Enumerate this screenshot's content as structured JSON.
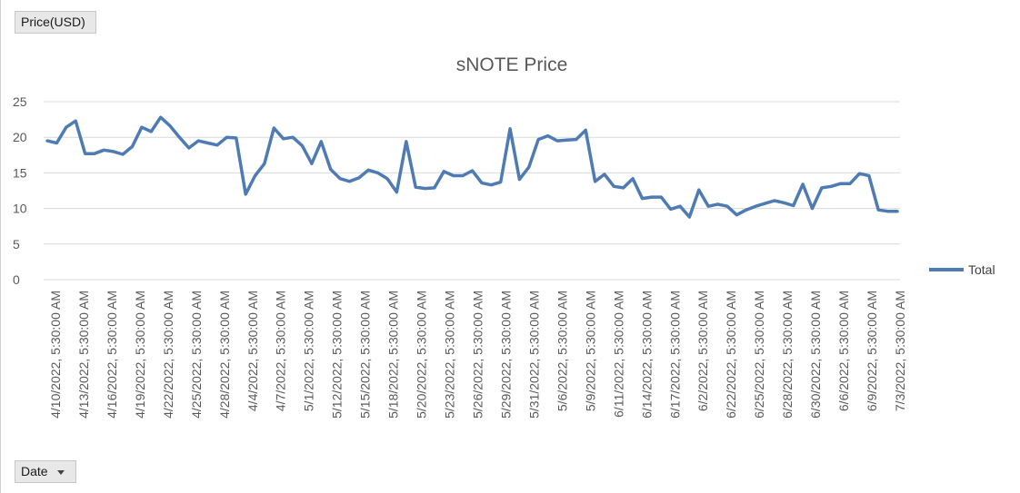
{
  "field_buttons": {
    "value_field": "Price(USD)",
    "axis_field": "Date"
  },
  "colors": {
    "series": "#4f7bb4",
    "grid": "#d9d9d9",
    "text": "#595959"
  },
  "chart_data": {
    "type": "line",
    "title": "sNOTE Price",
    "xlabel": "",
    "ylabel": "",
    "ylim": [
      0,
      25
    ],
    "yticks": [
      0,
      5,
      10,
      15,
      20,
      25
    ],
    "grid": true,
    "legend_position": "right",
    "x_tick_labels": [
      "4/10/2022, 5:30:00 AM",
      "4/13/2022, 5:30:00 AM",
      "4/16/2022, 5:30:00 AM",
      "4/19/2022, 5:30:00 AM",
      "4/22/2022, 5:30:00 AM",
      "4/25/2022, 5:30:00 AM",
      "4/28/2022, 5:30:00 AM",
      "4/4/2022, 5:30:00 AM",
      "4/7/2022, 5:30:00 AM",
      "5/1/2022, 5:30:00 AM",
      "5/12/2022, 5:30:00 AM",
      "5/15/2022, 5:30:00 AM",
      "5/18/2022, 5:30:00 AM",
      "5/20/2022, 5:30:00 AM",
      "5/23/2022, 5:30:00 AM",
      "5/26/2022, 5:30:00 AM",
      "5/29/2022, 5:30:00 AM",
      "5/31/2022, 5:30:00 AM",
      "5/6/2022, 5:30:00 AM",
      "5/9/2022, 5:30:00 AM",
      "6/11/2022, 5:30:00 AM",
      "6/14/2022, 5:30:00 AM",
      "6/17/2022, 5:30:00 AM",
      "6/2/2022, 5:30:00 AM",
      "6/22/2022, 5:30:00 AM",
      "6/25/2022, 5:30:00 AM",
      "6/28/2022, 5:30:00 AM",
      "6/30/2022, 5:30:00 AM",
      "6/6/2022, 5:30:00 AM",
      "6/9/2022, 5:30:00 AM",
      "7/3/2022, 5:30:00 AM"
    ],
    "series": [
      {
        "name": "Total",
        "values": [
          19.5,
          19.2,
          21.4,
          22.3,
          17.7,
          17.7,
          18.2,
          18.0,
          17.6,
          18.7,
          21.4,
          20.8,
          22.8,
          21.6,
          20.0,
          18.5,
          19.5,
          19.2,
          18.9,
          20.0,
          19.9,
          12.0,
          14.6,
          16.3,
          21.3,
          19.8,
          20.0,
          18.8,
          16.3,
          19.4,
          15.5,
          14.2,
          13.8,
          14.3,
          15.4,
          15.0,
          14.2,
          12.3,
          19.4,
          13.0,
          12.8,
          12.9,
          15.2,
          14.6,
          14.6,
          15.3,
          13.6,
          13.3,
          13.7,
          21.2,
          14.1,
          15.8,
          19.7,
          20.2,
          19.5,
          19.6,
          19.7,
          21.0,
          13.8,
          14.8,
          13.1,
          12.9,
          14.2,
          11.4,
          11.6,
          11.6,
          9.9,
          10.3,
          8.8,
          12.6,
          10.3,
          10.6,
          10.3,
          9.1,
          9.8,
          10.3,
          10.7,
          11.1,
          10.8,
          10.4,
          13.4,
          10.0,
          12.9,
          13.1,
          13.5,
          13.5,
          14.9,
          14.6,
          9.8,
          9.6,
          9.6
        ]
      }
    ]
  }
}
